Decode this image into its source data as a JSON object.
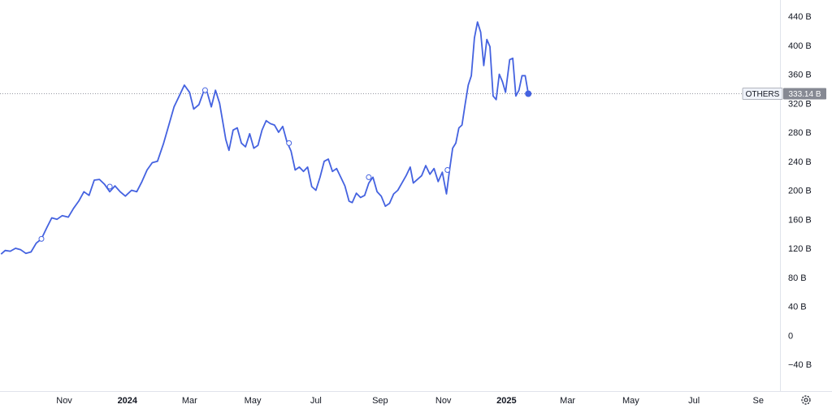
{
  "chart_data": {
    "type": "line",
    "series": [
      {
        "color": "#4462e0",
        "points": [
          [
            "2023-09-01",
            112
          ],
          [
            "2023-09-05",
            117
          ],
          [
            "2023-09-10",
            116
          ],
          [
            "2023-09-15",
            120
          ],
          [
            "2023-09-20",
            118
          ],
          [
            "2023-09-25",
            113
          ],
          [
            "2023-09-30",
            115
          ],
          [
            "2023-10-05",
            127
          ],
          [
            "2023-10-10",
            133
          ],
          [
            "2023-10-15",
            148
          ],
          [
            "2023-10-20",
            162
          ],
          [
            "2023-10-25",
            160
          ],
          [
            "2023-10-30",
            165
          ],
          [
            "2023-11-05",
            163
          ],
          [
            "2023-11-10",
            175
          ],
          [
            "2023-11-15",
            185
          ],
          [
            "2023-11-20",
            198
          ],
          [
            "2023-11-25",
            193
          ],
          [
            "2023-11-30",
            214
          ],
          [
            "2023-12-05",
            215
          ],
          [
            "2023-12-10",
            208
          ],
          [
            "2023-12-15",
            198
          ],
          [
            "2023-12-20",
            206
          ],
          [
            "2023-12-25",
            198
          ],
          [
            "2023-12-30",
            192
          ],
          [
            "2024-01-05",
            200
          ],
          [
            "2024-01-10",
            198
          ],
          [
            "2024-01-15",
            212
          ],
          [
            "2024-01-20",
            228
          ],
          [
            "2024-01-25",
            238
          ],
          [
            "2024-01-30",
            240
          ],
          [
            "2024-02-05",
            265
          ],
          [
            "2024-02-10",
            290
          ],
          [
            "2024-02-15",
            315
          ],
          [
            "2024-02-20",
            330
          ],
          [
            "2024-02-25",
            345
          ],
          [
            "2024-03-01",
            335
          ],
          [
            "2024-03-05",
            312
          ],
          [
            "2024-03-10",
            318
          ],
          [
            "2024-03-15",
            338
          ],
          [
            "2024-03-18",
            335
          ],
          [
            "2024-03-22",
            315
          ],
          [
            "2024-03-26",
            338
          ],
          [
            "2024-03-30",
            320
          ],
          [
            "2024-04-05",
            270
          ],
          [
            "2024-04-08",
            255
          ],
          [
            "2024-04-12",
            283
          ],
          [
            "2024-04-16",
            286
          ],
          [
            "2024-04-20",
            265
          ],
          [
            "2024-04-24",
            260
          ],
          [
            "2024-04-28",
            278
          ],
          [
            "2024-05-02",
            258
          ],
          [
            "2024-05-06",
            262
          ],
          [
            "2024-05-10",
            283
          ],
          [
            "2024-05-14",
            296
          ],
          [
            "2024-05-18",
            292
          ],
          [
            "2024-05-22",
            290
          ],
          [
            "2024-05-26",
            280
          ],
          [
            "2024-05-30",
            288
          ],
          [
            "2024-06-03",
            267
          ],
          [
            "2024-06-07",
            254
          ],
          [
            "2024-06-11",
            228
          ],
          [
            "2024-06-15",
            232
          ],
          [
            "2024-06-19",
            226
          ],
          [
            "2024-06-23",
            232
          ],
          [
            "2024-06-27",
            205
          ],
          [
            "2024-07-01",
            200
          ],
          [
            "2024-07-05",
            218
          ],
          [
            "2024-07-09",
            240
          ],
          [
            "2024-07-13",
            243
          ],
          [
            "2024-07-17",
            226
          ],
          [
            "2024-07-21",
            230
          ],
          [
            "2024-07-25",
            218
          ],
          [
            "2024-07-29",
            206
          ],
          [
            "2024-08-02",
            185
          ],
          [
            "2024-08-05",
            183
          ],
          [
            "2024-08-09",
            196
          ],
          [
            "2024-08-13",
            190
          ],
          [
            "2024-08-17",
            193
          ],
          [
            "2024-08-21",
            210
          ],
          [
            "2024-08-25",
            218
          ],
          [
            "2024-08-29",
            198
          ],
          [
            "2024-09-02",
            192
          ],
          [
            "2024-09-06",
            178
          ],
          [
            "2024-09-10",
            182
          ],
          [
            "2024-09-14",
            195
          ],
          [
            "2024-09-18",
            200
          ],
          [
            "2024-09-22",
            210
          ],
          [
            "2024-09-26",
            220
          ],
          [
            "2024-09-30",
            232
          ],
          [
            "2024-10-03",
            210
          ],
          [
            "2024-10-07",
            215
          ],
          [
            "2024-10-11",
            220
          ],
          [
            "2024-10-15",
            234
          ],
          [
            "2024-10-19",
            222
          ],
          [
            "2024-10-23",
            230
          ],
          [
            "2024-10-27",
            212
          ],
          [
            "2024-10-31",
            225
          ],
          [
            "2024-11-04",
            195
          ],
          [
            "2024-11-07",
            228
          ],
          [
            "2024-11-10",
            258
          ],
          [
            "2024-11-13",
            265
          ],
          [
            "2024-11-16",
            286
          ],
          [
            "2024-11-19",
            290
          ],
          [
            "2024-11-22",
            318
          ],
          [
            "2024-11-25",
            345
          ],
          [
            "2024-11-28",
            358
          ],
          [
            "2024-12-01",
            410
          ],
          [
            "2024-12-04",
            432
          ],
          [
            "2024-12-07",
            418
          ],
          [
            "2024-12-10",
            372
          ],
          [
            "2024-12-13",
            408
          ],
          [
            "2024-12-16",
            398
          ],
          [
            "2024-12-19",
            330
          ],
          [
            "2024-12-22",
            325
          ],
          [
            "2024-12-25",
            360
          ],
          [
            "2024-12-28",
            350
          ],
          [
            "2024-12-31",
            335
          ],
          [
            "2025-01-04",
            380
          ],
          [
            "2025-01-07",
            382
          ],
          [
            "2025-01-10",
            330
          ],
          [
            "2025-01-13",
            338
          ],
          [
            "2025-01-16",
            358
          ],
          [
            "2025-01-19",
            358
          ],
          [
            "2025-01-22",
            333.14
          ]
        ]
      }
    ],
    "markers": [
      [
        "2023-10-10",
        133
      ],
      [
        "2023-12-15",
        205
      ],
      [
        "2024-03-16",
        338
      ],
      [
        "2024-06-05",
        265
      ],
      [
        "2024-08-21",
        218
      ],
      [
        "2024-11-05",
        228
      ]
    ],
    "last_label": "OTHERS",
    "last_value_text": "333.14 B",
    "ylim": [
      -60,
      445
    ],
    "xlim": [
      "2023-08-31",
      "2025-09-22"
    ],
    "yticks": [
      {
        "value": 440,
        "label": "440 B"
      },
      {
        "value": 400,
        "label": "400 B"
      },
      {
        "value": 360,
        "label": "360 B"
      },
      {
        "value": 320,
        "label": "320 B"
      },
      {
        "value": 280,
        "label": "280 B"
      },
      {
        "value": 240,
        "label": "240 B"
      },
      {
        "value": 200,
        "label": "200 B"
      },
      {
        "value": 160,
        "label": "160 B"
      },
      {
        "value": 120,
        "label": "120 B"
      },
      {
        "value": 80,
        "label": "80 B"
      },
      {
        "value": 40,
        "label": "40 B"
      },
      {
        "value": 0,
        "label": "0"
      },
      {
        "value": -40,
        "label": "−40 B"
      }
    ],
    "xticks": [
      {
        "date": "2023-11-01",
        "label": "Nov",
        "bold": false
      },
      {
        "date": "2024-01-01",
        "label": "2024",
        "bold": true
      },
      {
        "date": "2024-03-01",
        "label": "Mar",
        "bold": false
      },
      {
        "date": "2024-05-01",
        "label": "May",
        "bold": false
      },
      {
        "date": "2024-07-01",
        "label": "Jul",
        "bold": false
      },
      {
        "date": "2024-09-01",
        "label": "Sep",
        "bold": false
      },
      {
        "date": "2024-11-01",
        "label": "Nov",
        "bold": false
      },
      {
        "date": "2025-01-01",
        "label": "2025",
        "bold": true
      },
      {
        "date": "2025-03-01",
        "label": "Mar",
        "bold": false
      },
      {
        "date": "2025-05-01",
        "label": "May",
        "bold": false
      },
      {
        "date": "2025-07-01",
        "label": "Jul",
        "bold": false
      },
      {
        "date": "2025-09-01",
        "label": "Se",
        "bold": false
      }
    ],
    "grid": false,
    "settings_icon": "gear-icon"
  }
}
